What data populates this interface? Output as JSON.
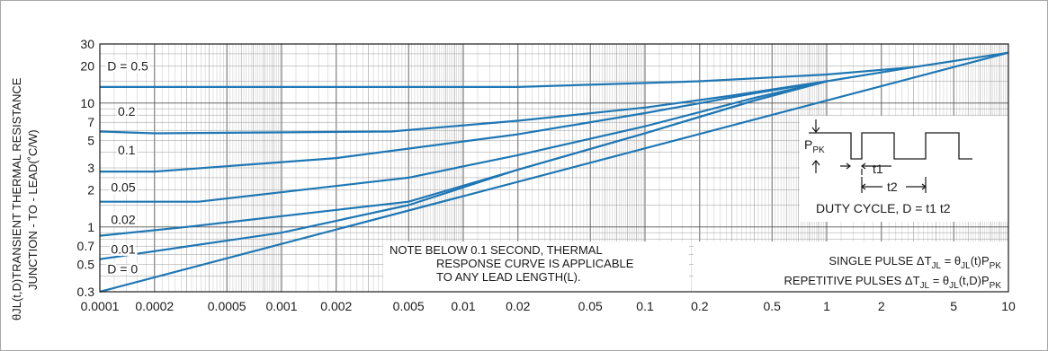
{
  "chart_data": {
    "type": "line",
    "x_scale": "log",
    "y_scale": "log",
    "xlim": [
      0.0001,
      10
    ],
    "ylim": [
      0.3,
      30
    ],
    "x_ticks": [
      {
        "v": 0.0001,
        "label": "0.0001"
      },
      {
        "v": 0.0002,
        "label": "0.0002"
      },
      {
        "v": 0.0005,
        "label": "0.0005"
      },
      {
        "v": 0.001,
        "label": "0.001"
      },
      {
        "v": 0.002,
        "label": "0.002"
      },
      {
        "v": 0.005,
        "label": "0.005"
      },
      {
        "v": 0.01,
        "label": "0.01"
      },
      {
        "v": 0.02,
        "label": "0.02"
      },
      {
        "v": 0.05,
        "label": "0.05"
      },
      {
        "v": 0.1,
        "label": "0.1"
      },
      {
        "v": 0.2,
        "label": "0.2"
      },
      {
        "v": 0.5,
        "label": "0.5"
      },
      {
        "v": 1,
        "label": "1"
      },
      {
        "v": 2,
        "label": "2"
      },
      {
        "v": 5,
        "label": "5"
      },
      {
        "v": 10,
        "label": "10"
      }
    ],
    "y_ticks": [
      {
        "v": 0.3,
        "label": "0.3"
      },
      {
        "v": 0.5,
        "label": "0.5"
      },
      {
        "v": 0.7,
        "label": "0.7"
      },
      {
        "v": 1,
        "label": "1"
      },
      {
        "v": 2,
        "label": "2"
      },
      {
        "v": 3,
        "label": "3"
      },
      {
        "v": 5,
        "label": "5"
      },
      {
        "v": 7,
        "label": "7"
      },
      {
        "v": 10,
        "label": "10"
      },
      {
        "v": 20,
        "label": "20"
      },
      {
        "v": 30,
        "label": "30"
      }
    ],
    "grid": true,
    "ylabel_line1": "θJL(t,D)TRANSIENT THERMAL RESISTANCE",
    "ylabel_line2": "JUNCTION - TO - LEAD(˚C/W)",
    "series": [
      {
        "label": "D = 0.5",
        "color": "#1f77b4",
        "points": [
          [
            0.0001,
            13.5
          ],
          [
            0.02,
            13.5
          ],
          [
            0.2,
            15
          ],
          [
            1,
            17
          ],
          [
            3,
            19.5
          ],
          [
            10,
            25.5
          ]
        ]
      },
      {
        "label": "0.2",
        "color": "#1f77b4",
        "points": [
          [
            0.0001,
            5.9
          ],
          [
            0.0002,
            5.7
          ],
          [
            0.004,
            5.9
          ],
          [
            0.02,
            7.2
          ],
          [
            0.1,
            9.2
          ],
          [
            0.3,
            11.5
          ],
          [
            1,
            15
          ],
          [
            3,
            19.5
          ]
        ]
      },
      {
        "label": "0.1",
        "color": "#1f77b4",
        "points": [
          [
            0.0001,
            2.8
          ],
          [
            0.0002,
            2.8
          ],
          [
            0.002,
            3.6
          ],
          [
            0.02,
            5.6
          ],
          [
            0.1,
            8.3
          ],
          [
            0.4,
            12
          ],
          [
            1,
            15
          ]
        ]
      },
      {
        "label": "0.05",
        "color": "#1f77b4",
        "points": [
          [
            0.0001,
            1.6
          ],
          [
            0.00035,
            1.6
          ],
          [
            0.005,
            2.5
          ],
          [
            0.02,
            3.8
          ],
          [
            0.1,
            6.5
          ],
          [
            0.4,
            11
          ],
          [
            1,
            15
          ]
        ]
      },
      {
        "label": "0.02",
        "color": "#1f77b4",
        "points": [
          [
            0.0001,
            0.85
          ],
          [
            0.0003,
            1.0
          ],
          [
            0.005,
            1.6
          ],
          [
            0.02,
            2.9
          ],
          [
            0.1,
            5.7
          ],
          [
            0.4,
            10.5
          ],
          [
            1,
            15
          ]
        ]
      },
      {
        "label": "0.01",
        "color": "#1f77b4",
        "points": [
          [
            0.0001,
            0.55
          ],
          [
            0.001,
            0.9
          ],
          [
            0.005,
            1.5
          ],
          [
            0.02,
            2.9
          ],
          [
            0.1,
            5.7
          ],
          [
            0.4,
            10.5
          ],
          [
            1,
            15
          ]
        ]
      },
      {
        "label": "D = 0",
        "color": "#1f77b4",
        "points": [
          [
            0.0001,
            0.3
          ],
          [
            10,
            25.5
          ]
        ]
      }
    ],
    "curve_labels": [
      {
        "text": "D = 0.5",
        "x": 0.000105,
        "y": 20
      },
      {
        "text": "0.2",
        "x": 0.00012,
        "y": 8.6
      },
      {
        "text": "0.1",
        "x": 0.00012,
        "y": 4.2
      },
      {
        "text": "0.05",
        "x": 0.00011,
        "y": 2.1
      },
      {
        "text": "0.02",
        "x": 0.00011,
        "y": 1.15
      },
      {
        "text": "0.01",
        "x": 0.00011,
        "y": 0.66
      },
      {
        "text": "D = 0",
        "x": 0.000105,
        "y": 0.46
      }
    ],
    "note": {
      "line1": "NOTE BELOW 0.1 SECOND, THERMAL",
      "line2": "RESPONSE CURVE IS APPLICABLE",
      "line3": "TO ANY LEAD LENGTH(L)."
    },
    "formula": {
      "single_prefix": "SINGLE PULSE ΔT",
      "single_sub": "JL",
      "single_mid": " = θ",
      "single_sub2": "JL",
      "single_mid2": "(t)P",
      "single_sub3": "PK",
      "rep_prefix": "REPETITIVE PULSES ΔT",
      "rep_sub": "JL",
      "rep_mid": " = θ",
      "rep_sub2": "JL",
      "rep_mid2": "(t,D)P",
      "rep_sub3": "PK"
    },
    "inset": {
      "ppk": "P",
      "ppk_sub": "PK",
      "t1": "t1",
      "t2": "t2",
      "duty": "DUTY CYCLE, D = t1 t2"
    }
  }
}
